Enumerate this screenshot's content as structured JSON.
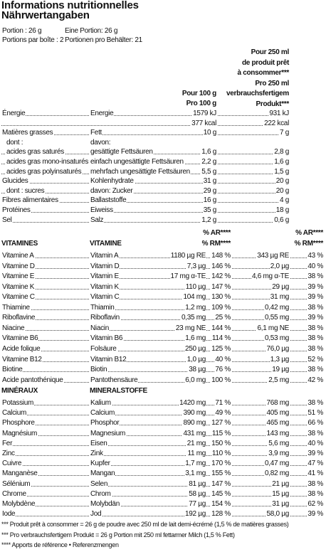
{
  "header": {
    "title": [
      "Informations nutritionnelles",
      "Nährwertangaben"
    ],
    "portion": [
      [
        "Portion : 26 g",
        "Eine Portion: 26 g"
      ],
      [
        "Portions par boîte : 21",
        "Portionen pro Behälter: 21"
      ]
    ]
  },
  "columns": {
    "per100": [
      "Pour 100 g",
      "Pro 100 g"
    ],
    "per250": [
      "Pour 250 ml",
      "de produit prêt",
      "à consommer***",
      "Pro 250 ml",
      "verbrauchsfertigem",
      "Produkt***"
    ]
  },
  "nutrients": [
    {
      "fr": "Énergie",
      "de": "Energie",
      "per100": "1579 kJ",
      "per250": "931 kJ",
      "kcal": {
        "per100": "377 kcal",
        "per250": "222 kcal"
      }
    },
    {
      "fr": "Matières grasses",
      "de": "Fett",
      "per100": "10 g",
      "per250": "7 g",
      "sub_heading": {
        "fr": "dont :",
        "de": "davon:"
      },
      "sub": [
        {
          "fr": "acides gras saturés",
          "de": "gesättigte Fettsäuren",
          "per100": "1,6 g",
          "per250": "2,8 g"
        },
        {
          "fr": "acides gras mono-insaturés",
          "de": "einfach ungesättigte Fettsäuren",
          "per100": "2,2 g",
          "per250": "1,6 g"
        },
        {
          "fr": "acides gras polyinsaturés",
          "de": "mehrfach ungesättigte Fettsäuren",
          "per100": "5,5 g",
          "per250": "1,5 g"
        }
      ]
    },
    {
      "fr": "Glucides",
      "de": "Kohlenhydrate",
      "per100": "31 g",
      "per250": "20 g",
      "sub": [
        {
          "fr": "dont : sucres",
          "de": "davon: Zucker",
          "per100": "29 g",
          "per250": "20 g"
        }
      ]
    },
    {
      "fr": "Fibres alimentaires",
      "de": "Ballaststoffe",
      "per100": "16 g",
      "per250": "4 g"
    },
    {
      "fr": "Protéines",
      "de": "Eiweiss",
      "per100": "35 g",
      "per250": "18 g"
    },
    {
      "fr": "Sel",
      "de": "Salz",
      "per100": "1,2 g",
      "per250": "0,6 g"
    }
  ],
  "ar_header": {
    "fr": "% AR****",
    "de": "% RM****"
  },
  "sections": [
    {
      "fr": "VITAMINES",
      "de": "VITAMINE",
      "items": [
        {
          "fr": "Vitamine A",
          "de": "Vitamin A",
          "per100": "1180 µg RE",
          "ar100": "148 %",
          "per250": "343 µg RE",
          "ar250": "43 %"
        },
        {
          "fr": "Vitamine D",
          "de": "Vitamin D",
          "per100": "7,3 µg",
          "ar100": "146 %",
          "per250": "2,0 µg",
          "ar250": "40 %"
        },
        {
          "fr": "Vitamine E",
          "de": "Vitamin E",
          "per100": "17 mg α-TE",
          "ar100": "142 %",
          "per250": "4,6 mg α-TE",
          "ar250": "38 %"
        },
        {
          "fr": "Vitamine K",
          "de": "Vitamin K",
          "per100": "110 µg",
          "ar100": "147 %",
          "per250": "29 µg",
          "ar250": "39 %"
        },
        {
          "fr": "Vitamine C",
          "de": "Vitamin C",
          "per100": "104 mg",
          "ar100": "130 %",
          "per250": "31 mg",
          "ar250": "39 %"
        },
        {
          "fr": "Thiamine",
          "de": "Thiamin",
          "per100": "1,2 mg",
          "ar100": "109 %",
          "per250": "0,42 mg",
          "ar250": "38 %"
        },
        {
          "fr": "Riboflavine",
          "de": "Riboflavin",
          "per100": "0,35 mg",
          "ar100": "25 %",
          "per250": "0,55 mg",
          "ar250": "39 %"
        },
        {
          "fr": "Niacine",
          "de": "Niacin",
          "per100": "23 mg NE",
          "ar100": "144 %",
          "per250": "6,1 mg NE",
          "ar250": "38 %"
        },
        {
          "fr": "Vitamine B6",
          "de": "Vitamin B6",
          "per100": "1,6 mg",
          "ar100": "114 %",
          "per250": "0,53 mg",
          "ar250": "38 %"
        },
        {
          "fr": "Acide folique",
          "de": "Folsäure",
          "per100": "250 µg",
          "ar100": "125 %",
          "per250": "76,0 µg",
          "ar250": "38 %"
        },
        {
          "fr": "Vitamine B12",
          "de": "Vitamin B12",
          "per100": "1,0 µg",
          "ar100": "40 %",
          "per250": "1,3 µg",
          "ar250": "52 %"
        },
        {
          "fr": "Biotine",
          "de": "Biotin",
          "per100": "38 µg",
          "ar100": "76 %",
          "per250": "19 µg",
          "ar250": "38 %"
        },
        {
          "fr": "Acide pantothénique",
          "de": "Pantothensäure",
          "per100": "6,0 mg",
          "ar100": "100 %",
          "per250": "2,5 mg",
          "ar250": "42 %"
        }
      ]
    },
    {
      "fr": "MINÉRAUX",
      "de": "MINERALSTOFFE",
      "items": [
        {
          "fr": "Potassium",
          "de": "Kalium",
          "per100": "1420 mg",
          "ar100": "71 %",
          "per250": "768 mg",
          "ar250": "38 %"
        },
        {
          "fr": "Calcium",
          "de": "Calcium",
          "per100": "390 mg",
          "ar100": "49 %",
          "per250": "405 mg",
          "ar250": "51 %"
        },
        {
          "fr": "Phosphore",
          "de": "Phosphor",
          "per100": "890 mg",
          "ar100": "127 %",
          "per250": "465 mg",
          "ar250": "66 %"
        },
        {
          "fr": "Magnésium",
          "de": "Magnesium",
          "per100": "431 mg",
          "ar100": "115 %",
          "per250": "143 mg",
          "ar250": "38 %"
        },
        {
          "fr": "Fer",
          "de": "Eisen",
          "per100": "21 mg",
          "ar100": "150 %",
          "per250": "5,6 mg",
          "ar250": "40 %"
        },
        {
          "fr": "Zinc",
          "de": "Zink",
          "per100": "11 mg",
          "ar100": "110 %",
          "per250": "3,9 mg",
          "ar250": "39 %"
        },
        {
          "fr": "Cuivre",
          "de": "Kupfer",
          "per100": "1,7 mg",
          "ar100": "170 %",
          "per250": "0,47 mg",
          "ar250": "47 %"
        },
        {
          "fr": "Manganèse",
          "de": "Mangan",
          "per100": "3,1 mg",
          "ar100": "155 %",
          "per250": "0,82 mg",
          "ar250": "41 %"
        },
        {
          "fr": "Sélénium",
          "de": "Selen",
          "per100": "81 µg",
          "ar100": "147 %",
          "per250": "21 µg",
          "ar250": "38 %"
        },
        {
          "fr": "Chrome",
          "de": "Chrom",
          "per100": "58 µg",
          "ar100": "145 %",
          "per250": "15 µg",
          "ar250": "38 %"
        },
        {
          "fr": "Molybdène",
          "de": "Molybdän",
          "per100": "77 µg",
          "ar100": "154 %",
          "per250": "31 µg",
          "ar250": "62 %"
        },
        {
          "fr": "Iode",
          "de": "Jod",
          "per100": "192 µg",
          "ar100": "128 %",
          "per250": "58,0 µg",
          "ar250": "39 %"
        }
      ]
    }
  ],
  "footnotes": [
    "*** Produit prêt à consommer = 26 g de poudre avec 250 ml de lait demi-écrémé (1,5 % de matières grasses)",
    "*** Pro verbrauchsfertigem Produkt = 26 g Portion mit 250 ml fettarmer Milch (1,5 % Fett)",
    "**** Apports de référence • Referenzmengen"
  ]
}
